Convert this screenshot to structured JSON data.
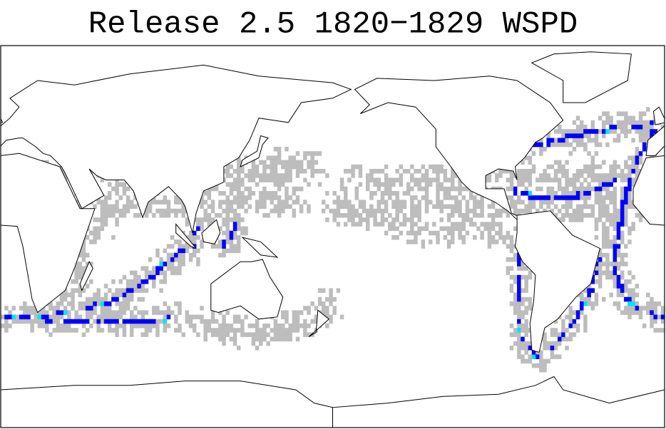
{
  "title": "Release 2.5 1820−1829 WSPD"
}
